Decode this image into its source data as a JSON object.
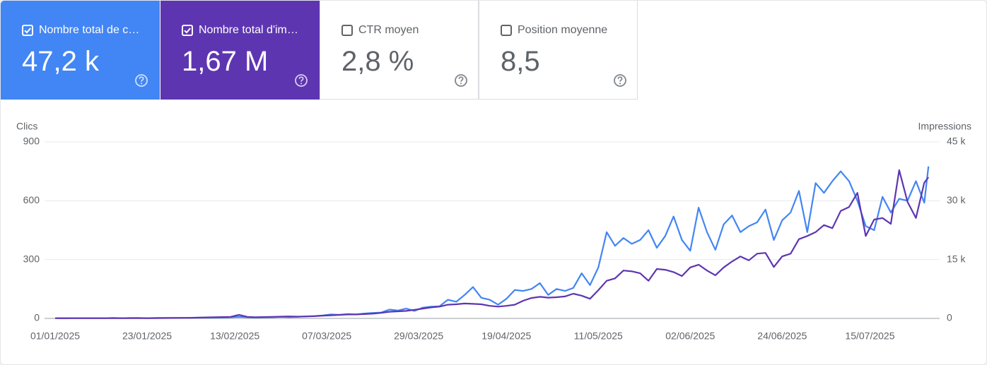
{
  "cards": [
    {
      "label": "Nombre total de c…",
      "value": "47,2 k",
      "checked": true,
      "color": "#4285f4"
    },
    {
      "label": "Nombre total d'im…",
      "value": "1,67 M",
      "checked": true,
      "color": "#5e35b1"
    },
    {
      "label": "CTR moyen",
      "value": "2,8 %",
      "checked": false
    },
    {
      "label": "Position moyenne",
      "value": "8,5",
      "checked": false
    }
  ],
  "chart_data": {
    "type": "line",
    "x": [
      "01/01/2025",
      "03/01/2025",
      "05/01/2025",
      "07/01/2025",
      "09/01/2025",
      "11/01/2025",
      "13/01/2025",
      "15/01/2025",
      "17/01/2025",
      "19/01/2025",
      "21/01/2025",
      "23/01/2025",
      "25/01/2025",
      "27/01/2025",
      "29/01/2025",
      "31/01/2025",
      "02/02/2025",
      "04/02/2025",
      "06/02/2025",
      "08/02/2025",
      "10/02/2025",
      "12/02/2025",
      "14/02/2025",
      "16/02/2025",
      "18/02/2025",
      "20/02/2025",
      "22/02/2025",
      "24/02/2025",
      "26/02/2025",
      "28/02/2025",
      "02/03/2025",
      "04/03/2025",
      "06/03/2025",
      "08/03/2025",
      "10/03/2025",
      "12/03/2025",
      "14/03/2025",
      "16/03/2025",
      "18/03/2025",
      "20/03/2025",
      "22/03/2025",
      "24/03/2025",
      "26/03/2025",
      "28/03/2025",
      "30/03/2025",
      "01/04/2025",
      "03/04/2025",
      "05/04/2025",
      "07/04/2025",
      "09/04/2025",
      "11/04/2025",
      "13/04/2025",
      "15/04/2025",
      "17/04/2025",
      "19/04/2025",
      "21/04/2025",
      "23/04/2025",
      "25/04/2025",
      "27/04/2025",
      "29/04/2025",
      "01/05/2025",
      "03/05/2025",
      "05/05/2025",
      "07/05/2025",
      "09/05/2025",
      "11/05/2025",
      "13/05/2025",
      "15/05/2025",
      "17/05/2025",
      "19/05/2025",
      "21/05/2025",
      "23/05/2025",
      "25/05/2025",
      "27/05/2025",
      "29/05/2025",
      "31/05/2025",
      "02/06/2025",
      "04/06/2025",
      "06/06/2025",
      "08/06/2025",
      "10/06/2025",
      "12/06/2025",
      "14/06/2025",
      "16/06/2025",
      "18/06/2025",
      "20/06/2025",
      "22/06/2025",
      "24/06/2025",
      "26/06/2025",
      "28/06/2025",
      "30/06/2025",
      "02/07/2025",
      "04/07/2025",
      "06/07/2025",
      "08/07/2025",
      "10/07/2025",
      "12/07/2025",
      "14/07/2025",
      "16/07/2025",
      "18/07/2025",
      "20/07/2025",
      "22/07/2025",
      "24/07/2025",
      "26/07/2025",
      "28/07/2025",
      "29/07/2025"
    ],
    "series": [
      {
        "name": "Clics",
        "color": "#4285f4",
        "values": [
          1,
          1,
          1,
          1,
          1,
          1,
          1,
          2,
          1,
          2,
          2,
          1,
          2,
          2,
          2,
          3,
          3,
          3,
          4,
          4,
          5,
          6,
          8,
          6,
          5,
          7,
          6,
          8,
          7,
          8,
          10,
          12,
          15,
          20,
          18,
          22,
          20,
          25,
          28,
          30,
          45,
          40,
          50,
          38,
          55,
          60,
          62,
          95,
          85,
          120,
          160,
          105,
          95,
          70,
          100,
          145,
          140,
          150,
          180,
          120,
          150,
          140,
          155,
          230,
          170,
          260,
          440,
          370,
          410,
          380,
          400,
          450,
          360,
          420,
          520,
          400,
          345,
          565,
          440,
          350,
          480,
          525,
          440,
          470,
          490,
          555,
          400,
          500,
          540,
          650,
          440,
          690,
          640,
          700,
          750,
          700,
          600,
          470,
          450,
          620,
          540,
          610,
          600,
          700,
          590,
          775
        ]
      },
      {
        "name": "Impressions",
        "color": "#5e35b1",
        "axis": "y2",
        "values": [
          50,
          40,
          50,
          60,
          50,
          50,
          60,
          70,
          60,
          80,
          70,
          60,
          80,
          90,
          100,
          120,
          150,
          200,
          250,
          300,
          350,
          400,
          900,
          400,
          300,
          350,
          400,
          450,
          500,
          450,
          500,
          550,
          700,
          800,
          900,
          1000,
          1000,
          1100,
          1200,
          1400,
          1700,
          1800,
          1900,
          2200,
          2500,
          2800,
          3000,
          3500,
          3600,
          3800,
          3700,
          3600,
          3200,
          3000,
          3200,
          3500,
          4500,
          5200,
          5500,
          5300,
          5400,
          5600,
          6300,
          5800,
          5000,
          7200,
          9600,
          10200,
          12200,
          12000,
          11500,
          9600,
          12600,
          12400,
          11800,
          10800,
          13000,
          13700,
          12200,
          11000,
          13000,
          14500,
          15800,
          14800,
          16500,
          16700,
          13100,
          15800,
          16500,
          20200,
          21000,
          22000,
          23800,
          23000,
          27400,
          28400,
          32000,
          21000,
          25200,
          25600,
          24100,
          37800,
          29700,
          25600,
          34600,
          36000
        ]
      }
    ],
    "xticks": [
      "01/01/2025",
      "23/01/2025",
      "13/02/2025",
      "07/03/2025",
      "29/03/2025",
      "19/04/2025",
      "11/05/2025",
      "02/06/2025",
      "24/06/2025",
      "15/07/2025"
    ],
    "ylim": [
      0,
      900
    ],
    "yticks": [
      0,
      300,
      600,
      900
    ],
    "y2lim": [
      0,
      45000
    ],
    "y2ticks": [
      0,
      {
        "value": 15000,
        "label": "15 k"
      },
      {
        "value": 30000,
        "label": "30 k"
      },
      {
        "value": 45000,
        "label": "45 k"
      }
    ],
    "grid": true
  }
}
